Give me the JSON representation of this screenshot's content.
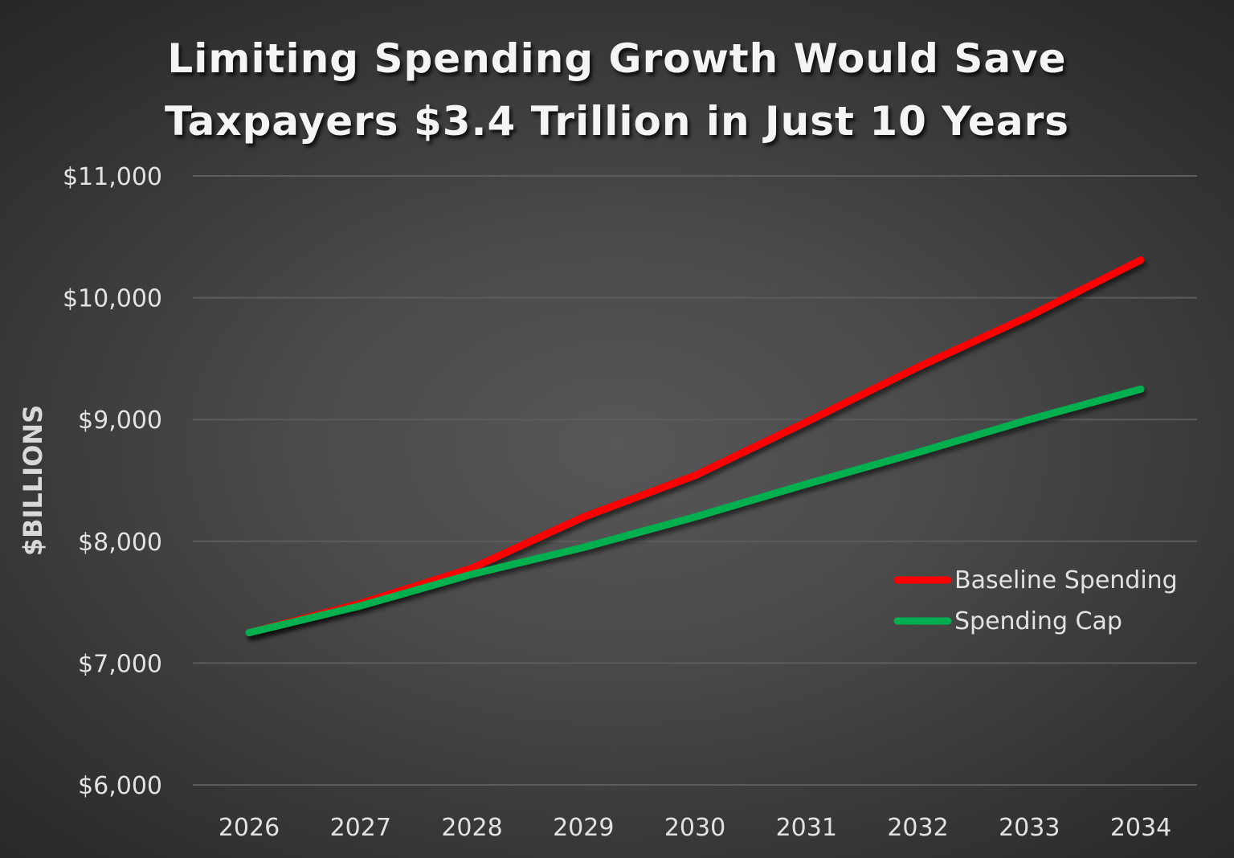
{
  "chart_data": {
    "type": "line",
    "title": [
      "Limiting Spending Growth Would Save",
      "Taxpayers $3.4 Trillion in Just 10 Years"
    ],
    "xlabel": "",
    "ylabel": "$BILLIONS",
    "categories": [
      "2026",
      "2027",
      "2028",
      "2029",
      "2030",
      "2031",
      "2032",
      "2033",
      "2034"
    ],
    "ylim": [
      6000,
      11000
    ],
    "yticks": [
      6000,
      7000,
      8000,
      9000,
      10000,
      11000
    ],
    "ytick_labels": [
      "$6,000",
      "$7,000",
      "$8,000",
      "$9,000",
      "$10,000",
      "$11,000"
    ],
    "grid": true,
    "legend_position": "right-middle",
    "series": [
      {
        "name": "Baseline Spending",
        "color": "#ff0000",
        "values": [
          7250,
          7490,
          7780,
          8200,
          8540,
          8980,
          9430,
          9850,
          10310
        ]
      },
      {
        "name": "Spending Cap",
        "color": "#00b050",
        "values": [
          7250,
          7470,
          7730,
          7950,
          8200,
          8470,
          8730,
          9000,
          9250
        ]
      }
    ]
  }
}
